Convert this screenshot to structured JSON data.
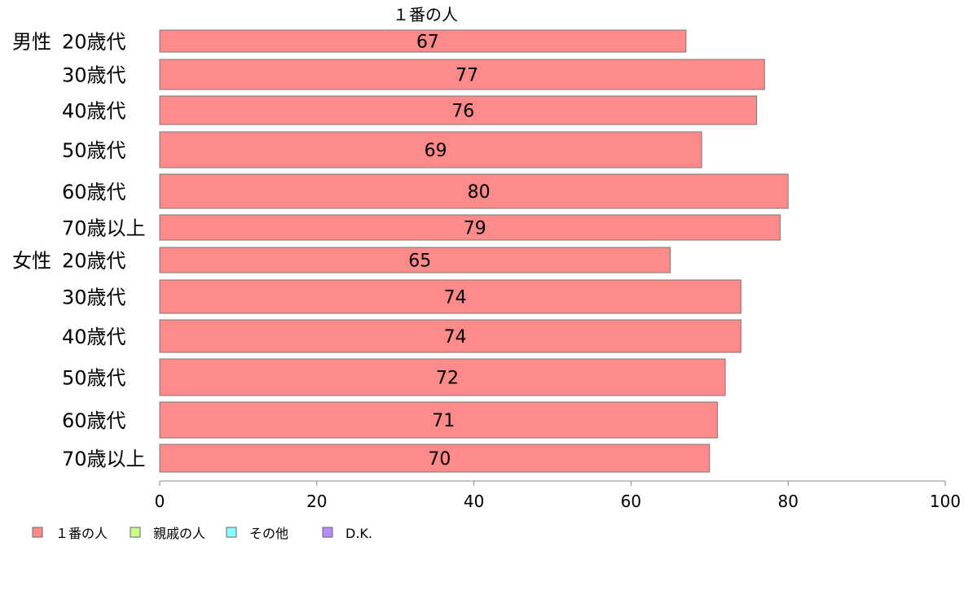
{
  "chart_data": {
    "type": "bar",
    "orientation": "horizontal",
    "series_header": "１番の人",
    "groups": [
      {
        "label": "男性",
        "categories": [
          "20歳代",
          "30歳代",
          "40歳代",
          "50歳代",
          "60歳代",
          "70歳以上"
        ],
        "values": [
          67,
          77,
          76,
          69,
          80,
          79
        ]
      },
      {
        "label": "女性",
        "categories": [
          "20歳代",
          "30歳代",
          "40歳代",
          "50歳代",
          "60歳代",
          "70歳以上"
        ],
        "values": [
          65,
          74,
          74,
          72,
          71,
          70
        ]
      }
    ],
    "xlim": [
      0,
      100
    ],
    "xticks": [
      0,
      20,
      40,
      60,
      80,
      100
    ],
    "grid": false,
    "legend_position": "bottom-left",
    "legend": [
      {
        "label": "１番の人",
        "color": "#ff8a8a"
      },
      {
        "label": "親戚の人",
        "color": "#c8ff8a"
      },
      {
        "label": "その他",
        "color": "#8affff"
      },
      {
        "label": "D.K.",
        "color": "#b88aff"
      }
    ],
    "bar_color": "#ff8a8a"
  }
}
